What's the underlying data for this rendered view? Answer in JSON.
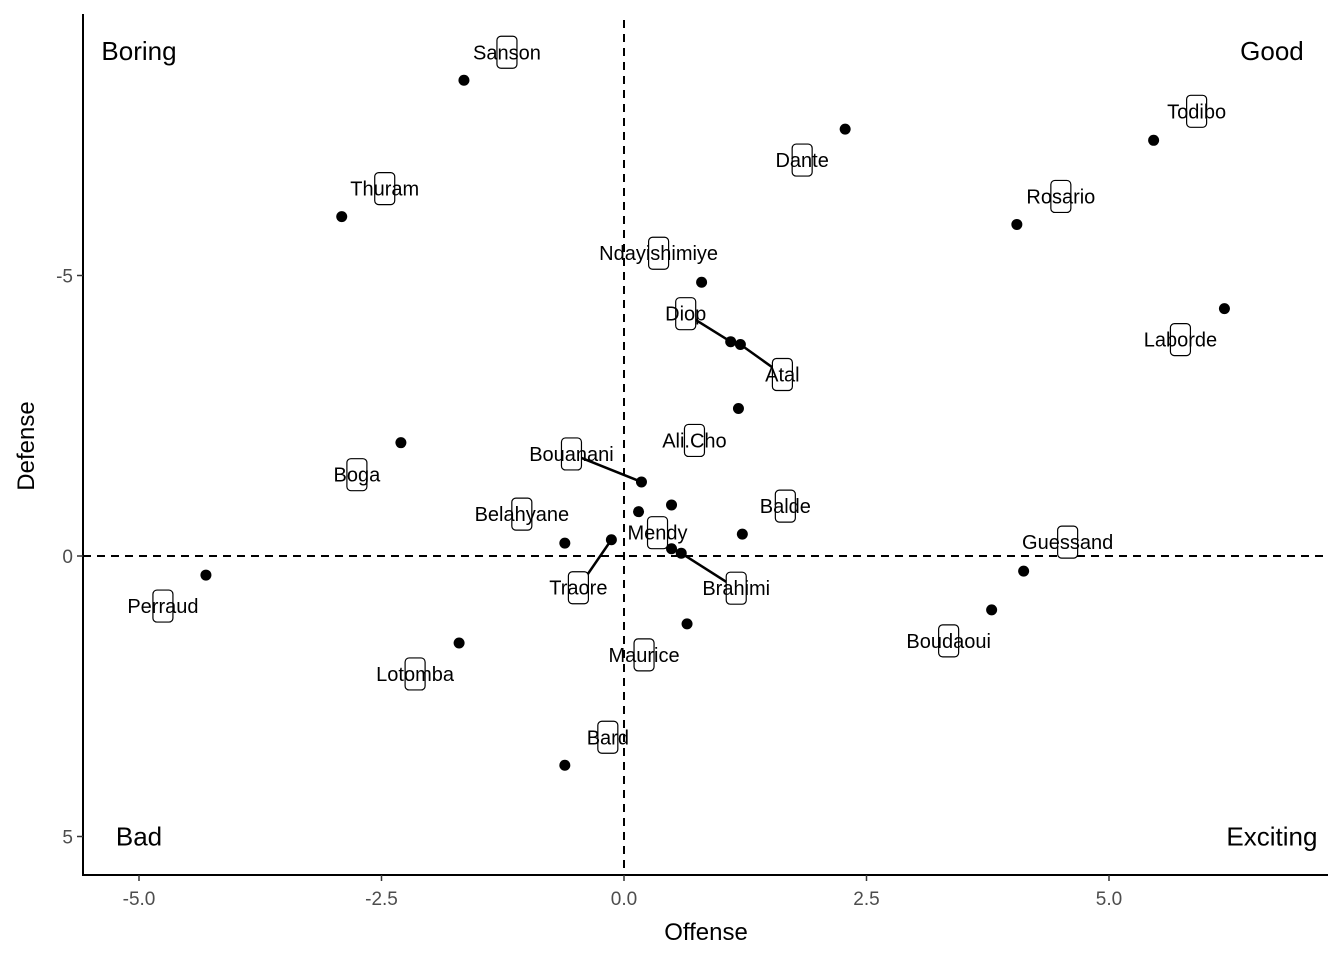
{
  "chart_data": {
    "type": "scatter",
    "title": "",
    "xlabel": "Offense",
    "ylabel": "Defense",
    "xlim": [
      -5.6,
      7.3
    ],
    "ylim": [
      -9.9,
      5.6
    ],
    "y_reversed": true,
    "x_ticks": [
      -5.0,
      -2.5,
      0.0,
      2.5,
      5.0
    ],
    "x_tick_labels": [
      "-5.0",
      "-2.5",
      "0.0",
      "2.5",
      "5.0"
    ],
    "y_ticks": [
      -5,
      0,
      5
    ],
    "y_tick_labels": [
      "-5",
      "0",
      "5"
    ],
    "grid": false,
    "reference_lines": {
      "x": 0,
      "y": 0,
      "style": "dashed"
    },
    "quadrant_labels": [
      {
        "text": "Boring",
        "x": -5.0,
        "y": -9.0
      },
      {
        "text": "Good",
        "x": 6.68,
        "y": -9.0
      },
      {
        "text": "Bad",
        "x": -5.0,
        "y": 5.0
      },
      {
        "text": "Exciting",
        "x": 6.68,
        "y": 5.0
      }
    ],
    "points": [
      {
        "name": "Sanson",
        "x": -1.65,
        "y": -8.48
      },
      {
        "name": "Thuram",
        "x": -2.91,
        "y": -6.05
      },
      {
        "name": "Boga",
        "x": -2.3,
        "y": -2.02
      },
      {
        "name": "Perraud",
        "x": -4.31,
        "y": 0.34
      },
      {
        "name": "Lotomba",
        "x": -1.7,
        "y": 1.55
      },
      {
        "name": "Belahyane",
        "x": -0.61,
        "y": -0.23
      },
      {
        "name": "Traore",
        "x": -0.13,
        "y": -0.29
      },
      {
        "name": "Bard",
        "x": -0.61,
        "y": 3.73
      },
      {
        "name": "Maurice",
        "x": 0.65,
        "y": 1.21
      },
      {
        "name": "Mendy",
        "x": 0.49,
        "y": -0.13
      },
      {
        "name": "Bouanani",
        "x": 0.18,
        "y": -1.32
      },
      {
        "name": "Brahimi",
        "x": 0.59,
        "y": -0.05
      },
      {
        "name": "Balde",
        "x": 1.22,
        "y": -0.39
      },
      {
        "name": "Ali.Cho",
        "x": 1.18,
        "y": -2.63
      },
      {
        "name": "Ndayishimiye",
        "x": 0.8,
        "y": -4.88
      },
      {
        "name": "Diop",
        "x": 1.1,
        "y": -3.82
      },
      {
        "name": "Atal",
        "x": 1.2,
        "y": -3.77
      },
      {
        "name": "Dante",
        "x": 2.28,
        "y": -7.61
      },
      {
        "name": "Todibo",
        "x": 5.46,
        "y": -7.41
      },
      {
        "name": "Rosario",
        "x": 4.05,
        "y": -5.91
      },
      {
        "name": "Laborde",
        "x": 6.19,
        "y": -4.41
      },
      {
        "name": "Guessand",
        "x": 4.12,
        "y": 0.27
      },
      {
        "name": "Boudaoui",
        "x": 3.79,
        "y": 0.96
      },
      {
        "name": "",
        "x": 0.15,
        "y": -0.79
      },
      {
        "name": "",
        "x": 0.49,
        "y": -0.91
      }
    ]
  }
}
